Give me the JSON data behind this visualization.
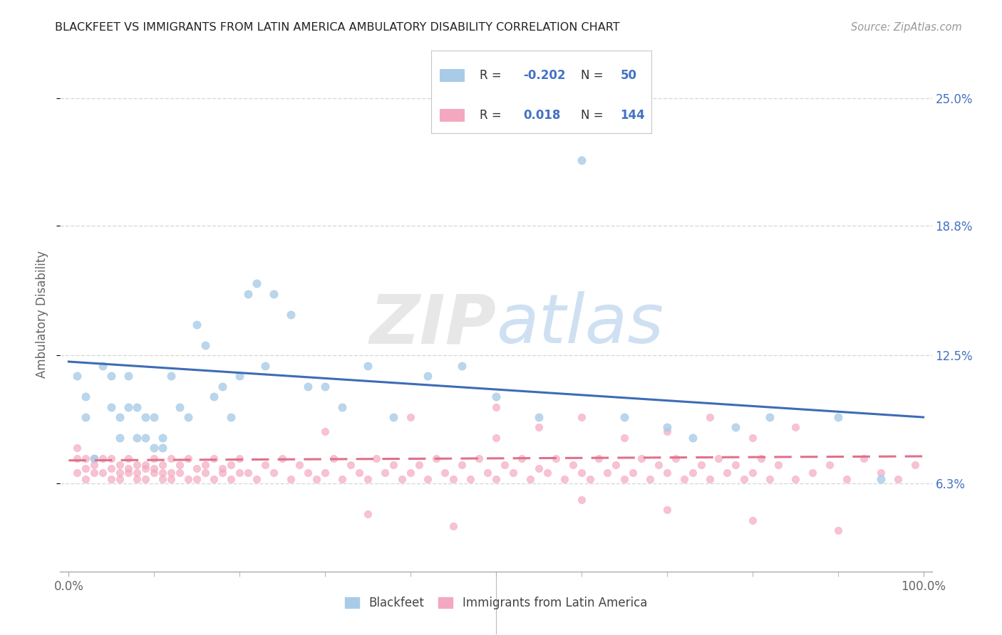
{
  "title": "BLACKFEET VS IMMIGRANTS FROM LATIN AMERICA AMBULATORY DISABILITY CORRELATION CHART",
  "source": "Source: ZipAtlas.com",
  "ylabel": "Ambulatory Disability",
  "yticks": [
    0.063,
    0.125,
    0.188,
    0.25
  ],
  "ytick_labels": [
    "6.3%",
    "12.5%",
    "18.8%",
    "25.0%"
  ],
  "ylim_min": 0.02,
  "ylim_max": 0.27,
  "blue_scatter_x": [
    0.01,
    0.02,
    0.02,
    0.03,
    0.04,
    0.05,
    0.05,
    0.06,
    0.06,
    0.07,
    0.07,
    0.08,
    0.08,
    0.09,
    0.09,
    0.1,
    0.1,
    0.11,
    0.11,
    0.12,
    0.13,
    0.14,
    0.15,
    0.16,
    0.17,
    0.18,
    0.19,
    0.2,
    0.21,
    0.22,
    0.23,
    0.24,
    0.26,
    0.28,
    0.3,
    0.32,
    0.35,
    0.38,
    0.42,
    0.46,
    0.5,
    0.55,
    0.6,
    0.65,
    0.7,
    0.73,
    0.78,
    0.82,
    0.9,
    0.95
  ],
  "blue_scatter_y": [
    0.115,
    0.095,
    0.105,
    0.075,
    0.12,
    0.115,
    0.1,
    0.095,
    0.085,
    0.1,
    0.115,
    0.085,
    0.1,
    0.095,
    0.085,
    0.08,
    0.095,
    0.08,
    0.085,
    0.115,
    0.1,
    0.095,
    0.14,
    0.13,
    0.105,
    0.11,
    0.095,
    0.115,
    0.155,
    0.16,
    0.12,
    0.155,
    0.145,
    0.11,
    0.11,
    0.1,
    0.12,
    0.095,
    0.115,
    0.12,
    0.105,
    0.095,
    0.22,
    0.095,
    0.09,
    0.085,
    0.09,
    0.095,
    0.095,
    0.065
  ],
  "pink_scatter_x": [
    0.01,
    0.01,
    0.01,
    0.02,
    0.02,
    0.02,
    0.03,
    0.03,
    0.03,
    0.04,
    0.04,
    0.05,
    0.05,
    0.05,
    0.06,
    0.06,
    0.06,
    0.07,
    0.07,
    0.07,
    0.08,
    0.08,
    0.08,
    0.09,
    0.09,
    0.09,
    0.1,
    0.1,
    0.1,
    0.11,
    0.11,
    0.11,
    0.12,
    0.12,
    0.12,
    0.13,
    0.13,
    0.14,
    0.14,
    0.15,
    0.15,
    0.16,
    0.16,
    0.17,
    0.17,
    0.18,
    0.18,
    0.19,
    0.19,
    0.2,
    0.2,
    0.21,
    0.22,
    0.23,
    0.24,
    0.25,
    0.26,
    0.27,
    0.28,
    0.29,
    0.3,
    0.31,
    0.32,
    0.33,
    0.34,
    0.35,
    0.36,
    0.37,
    0.38,
    0.39,
    0.4,
    0.41,
    0.42,
    0.43,
    0.44,
    0.45,
    0.46,
    0.47,
    0.48,
    0.49,
    0.5,
    0.51,
    0.52,
    0.53,
    0.54,
    0.55,
    0.56,
    0.57,
    0.58,
    0.59,
    0.6,
    0.61,
    0.62,
    0.63,
    0.64,
    0.65,
    0.66,
    0.67,
    0.68,
    0.69,
    0.7,
    0.71,
    0.72,
    0.73,
    0.74,
    0.75,
    0.76,
    0.77,
    0.78,
    0.79,
    0.8,
    0.81,
    0.82,
    0.83,
    0.85,
    0.87,
    0.89,
    0.91,
    0.93,
    0.95,
    0.97,
    0.99,
    0.5,
    0.55,
    0.6,
    0.65,
    0.7,
    0.75,
    0.8,
    0.85,
    0.3,
    0.4,
    0.5,
    0.6,
    0.7,
    0.8,
    0.9,
    0.35,
    0.45
  ],
  "pink_scatter_y": [
    0.075,
    0.068,
    0.08,
    0.07,
    0.075,
    0.065,
    0.068,
    0.075,
    0.072,
    0.068,
    0.075,
    0.07,
    0.065,
    0.075,
    0.068,
    0.072,
    0.065,
    0.068,
    0.075,
    0.07,
    0.068,
    0.072,
    0.065,
    0.07,
    0.065,
    0.072,
    0.068,
    0.075,
    0.07,
    0.065,
    0.072,
    0.068,
    0.075,
    0.065,
    0.068,
    0.072,
    0.068,
    0.065,
    0.075,
    0.07,
    0.065,
    0.072,
    0.068,
    0.075,
    0.065,
    0.07,
    0.068,
    0.072,
    0.065,
    0.068,
    0.075,
    0.068,
    0.065,
    0.072,
    0.068,
    0.075,
    0.065,
    0.072,
    0.068,
    0.065,
    0.068,
    0.075,
    0.065,
    0.072,
    0.068,
    0.065,
    0.075,
    0.068,
    0.072,
    0.065,
    0.068,
    0.072,
    0.065,
    0.075,
    0.068,
    0.065,
    0.072,
    0.065,
    0.075,
    0.068,
    0.065,
    0.072,
    0.068,
    0.075,
    0.065,
    0.07,
    0.068,
    0.075,
    0.065,
    0.072,
    0.068,
    0.065,
    0.075,
    0.068,
    0.072,
    0.065,
    0.068,
    0.075,
    0.065,
    0.072,
    0.068,
    0.075,
    0.065,
    0.068,
    0.072,
    0.065,
    0.075,
    0.068,
    0.072,
    0.065,
    0.068,
    0.075,
    0.065,
    0.072,
    0.065,
    0.068,
    0.072,
    0.065,
    0.075,
    0.068,
    0.065,
    0.072,
    0.1,
    0.09,
    0.095,
    0.085,
    0.088,
    0.095,
    0.085,
    0.09,
    0.088,
    0.095,
    0.085,
    0.055,
    0.05,
    0.045,
    0.04,
    0.048,
    0.042
  ],
  "blue_line_x": [
    0.0,
    1.0
  ],
  "blue_line_y": [
    0.122,
    0.095
  ],
  "pink_line_x": [
    0.0,
    1.0
  ],
  "pink_line_y": [
    0.074,
    0.076
  ],
  "blue_color": "#a8cce8",
  "pink_color": "#f4a8c0",
  "blue_line_color": "#3d6cb5",
  "pink_line_color": "#e0708a",
  "background_color": "#ffffff",
  "grid_color": "#d0d0d0",
  "text_color": "#4472c4",
  "title_color": "#222222",
  "xtick_positions": [
    0.0,
    0.1,
    0.2,
    0.3,
    0.4,
    0.5,
    0.6,
    0.7,
    0.8,
    0.9,
    1.0
  ],
  "watermark_zip_color": "#dedede",
  "watermark_atlas_color": "#9ec8e8"
}
